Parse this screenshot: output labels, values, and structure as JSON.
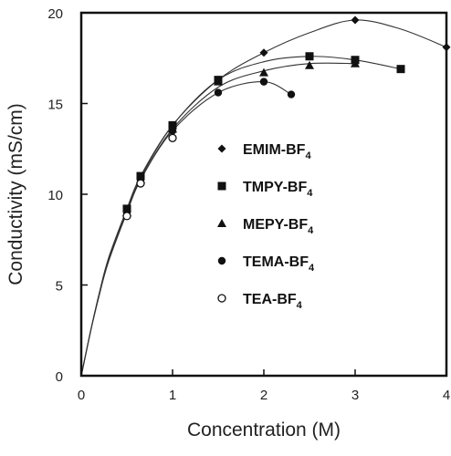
{
  "chart_data": {
    "type": "scatter",
    "title": "",
    "xlabel": "Concentration (M)",
    "ylabel": "Conductivity (mS/cm)",
    "xlim": [
      0,
      4
    ],
    "ylim": [
      0,
      20
    ],
    "xticks": [
      0,
      1,
      2,
      3,
      4
    ],
    "yticks": [
      0,
      5,
      10,
      15,
      20
    ],
    "grid": false,
    "legend_position": "inside-center",
    "series": [
      {
        "name": "EMIM-BF",
        "name_sub": "4",
        "marker": "diamond",
        "x": [
          0.5,
          0.65,
          1.0,
          1.5,
          2.0,
          3.0,
          4.0
        ],
        "y": [
          9.1,
          10.9,
          13.8,
          16.3,
          17.8,
          19.6,
          18.1
        ],
        "curve_x": [
          0,
          0.1,
          0.2,
          0.3,
          0.5,
          0.65,
          1.0,
          1.5,
          2.0,
          2.5,
          3.0,
          3.5,
          4.0
        ],
        "curve_y": [
          0,
          2.4,
          4.6,
          6.4,
          9.1,
          10.9,
          13.8,
          16.3,
          17.8,
          18.9,
          19.6,
          19.1,
          18.1
        ]
      },
      {
        "name": "TMPY-BF",
        "name_sub": "4",
        "marker": "square",
        "x": [
          0.5,
          0.65,
          1.0,
          1.5,
          2.5,
          3.0,
          3.5
        ],
        "y": [
          9.2,
          11.0,
          13.8,
          16.3,
          17.6,
          17.4,
          16.9
        ],
        "curve_x": [
          0,
          0.1,
          0.2,
          0.3,
          0.5,
          0.65,
          1.0,
          1.5,
          2.0,
          2.5,
          3.0,
          3.5
        ],
        "curve_y": [
          0,
          2.4,
          4.6,
          6.5,
          9.2,
          11.0,
          13.8,
          16.3,
          17.3,
          17.6,
          17.4,
          16.9
        ]
      },
      {
        "name": "MEPY-BF",
        "name_sub": "4",
        "marker": "triangle",
        "x": [
          0.5,
          0.65,
          1.0,
          1.5,
          2.0,
          2.5,
          3.0
        ],
        "y": [
          9.0,
          10.8,
          13.6,
          16.2,
          16.7,
          17.1,
          17.2
        ],
        "curve_x": [
          0,
          0.1,
          0.2,
          0.3,
          0.5,
          0.65,
          1.0,
          1.5,
          2.0,
          2.5,
          3.0
        ],
        "curve_y": [
          0,
          2.4,
          4.5,
          6.4,
          9.0,
          10.8,
          13.6,
          15.9,
          16.8,
          17.2,
          17.2
        ]
      },
      {
        "name": "TEMA-BF",
        "name_sub": "4",
        "marker": "circle-filled",
        "x": [
          0.5,
          0.65,
          1.0,
          1.5,
          2.0,
          2.3
        ],
        "y": [
          9.0,
          10.8,
          13.5,
          15.6,
          16.2,
          15.5
        ],
        "curve_x": [
          0,
          0.1,
          0.2,
          0.3,
          0.5,
          0.65,
          1.0,
          1.5,
          2.0,
          2.3
        ],
        "curve_y": [
          0,
          2.4,
          4.5,
          6.3,
          9.0,
          10.8,
          13.5,
          15.6,
          16.2,
          15.5
        ]
      },
      {
        "name": "TEA-BF",
        "name_sub": "4",
        "marker": "circle-open",
        "x": [
          0.5,
          0.65,
          1.0
        ],
        "y": [
          8.8,
          10.6,
          13.1
        ],
        "curve_x": [],
        "curve_y": []
      }
    ]
  }
}
